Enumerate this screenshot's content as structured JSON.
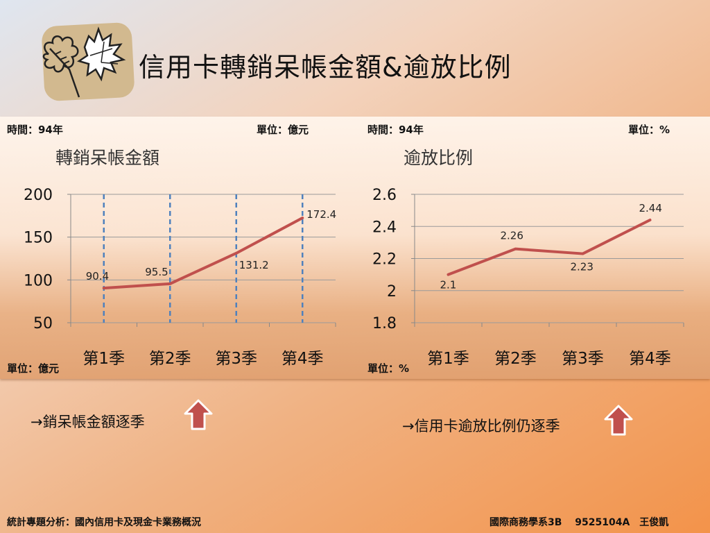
{
  "slide": {
    "title": "信用卡轉銷呆帳金額&逾放比例"
  },
  "left_panel": {
    "time_label": "時間：94年",
    "unit_top": "單位：億元",
    "unit_bottom": "單位：億元"
  },
  "right_panel": {
    "time_label": "時間：94年",
    "unit_top": "單位：%",
    "unit_bottom": "單位：%"
  },
  "notes": {
    "left": "→銷呆帳金額逐季",
    "right": "→信用卡逾放比例仍逐季"
  },
  "footer": {
    "left": "統計專題分析：國內信用卡及現金卡業務概況",
    "right": "國際商務學系3B　 9525104A　王俊凱"
  },
  "colors": {
    "line": "#c0504d",
    "dashed": "#4f81bd",
    "arrow": "#c0504d"
  },
  "chart_data": [
    {
      "type": "line",
      "title": "轉銷呆帳金額",
      "categories": [
        "第1季",
        "第2季",
        "第3季",
        "第4季"
      ],
      "values": [
        90.4,
        95.5,
        131.2,
        172.4
      ],
      "value_labels": [
        "90.4",
        "95.5",
        "131.2",
        "172.4"
      ],
      "ylim": [
        50,
        200
      ],
      "yticks": [
        "200",
        "150",
        "100",
        "50"
      ],
      "grid": true,
      "dashed_category_lines": true
    },
    {
      "type": "line",
      "title": "逾放比例",
      "categories": [
        "第1季",
        "第2季",
        "第3季",
        "第4季"
      ],
      "values": [
        2.1,
        2.26,
        2.23,
        2.44
      ],
      "value_labels": [
        "2.1",
        "2.26",
        "2.23",
        "2.44"
      ],
      "ylim": [
        1.8,
        2.6
      ],
      "yticks": [
        "2.6",
        "2.4",
        "2.2",
        "2",
        "1.8"
      ],
      "grid": true,
      "dashed_category_lines": false
    }
  ]
}
